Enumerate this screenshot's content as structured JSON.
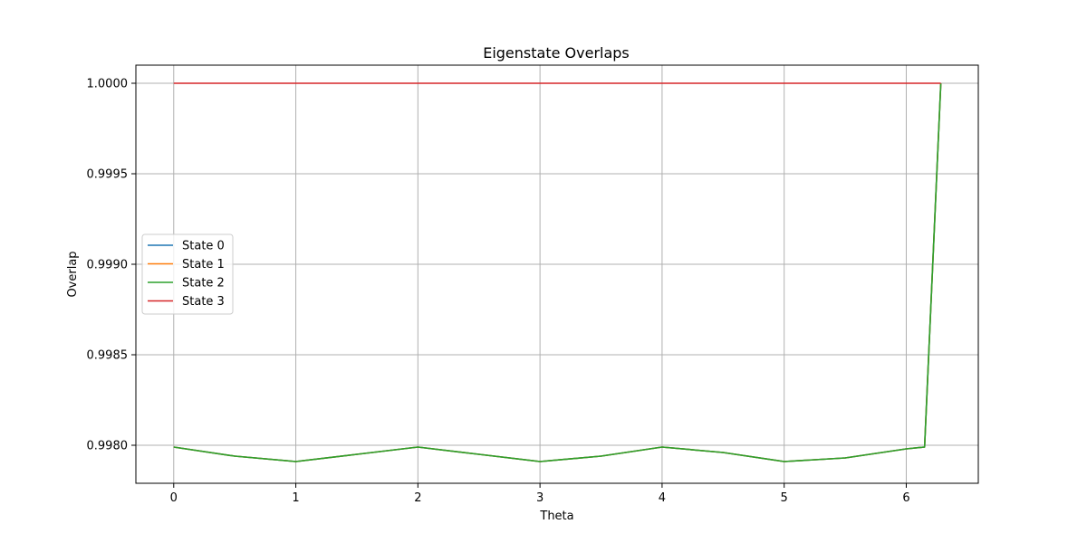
{
  "chart_data": {
    "type": "line",
    "title": "Eigenstate Overlaps",
    "xlabel": "Theta",
    "ylabel": "Overlap",
    "xlim": [
      -0.31,
      6.59
    ],
    "ylim": [
      0.99779,
      1.0001
    ],
    "xticks": [
      0,
      1,
      2,
      3,
      4,
      5,
      6
    ],
    "xtick_labels": [
      "0",
      "1",
      "2",
      "3",
      "4",
      "5",
      "6"
    ],
    "yticks": [
      0.998,
      0.9985,
      0.999,
      0.9995,
      1.0
    ],
    "ytick_labels": [
      "0.9980",
      "0.9985",
      "0.9990",
      "0.9995",
      "1.0000"
    ],
    "grid": true,
    "legend_position": "center-left",
    "series": [
      {
        "name": "State 0",
        "color": "#1f77b4",
        "x": [
          0,
          0.5,
          1.0,
          1.5,
          2.0,
          2.5,
          3.0,
          3.5,
          4.0,
          4.5,
          5.0,
          5.5,
          6.0,
          6.15,
          6.283
        ],
        "y": [
          0.99799,
          0.99794,
          0.99791,
          0.99795,
          0.99799,
          0.99795,
          0.99791,
          0.99794,
          0.99799,
          0.99796,
          0.99791,
          0.99793,
          0.99798,
          0.99799,
          1.0
        ]
      },
      {
        "name": "State 1",
        "color": "#ff7f0e",
        "x": [
          0,
          0.5,
          1.0,
          1.5,
          2.0,
          2.5,
          3.0,
          3.5,
          4.0,
          4.5,
          5.0,
          5.5,
          6.0,
          6.15,
          6.283
        ],
        "y": [
          0.99799,
          0.99794,
          0.99791,
          0.99795,
          0.99799,
          0.99795,
          0.99791,
          0.99794,
          0.99799,
          0.99796,
          0.99791,
          0.99793,
          0.99798,
          0.99799,
          1.0
        ]
      },
      {
        "name": "State 2",
        "color": "#2ca02c",
        "x": [
          0,
          0.5,
          1.0,
          1.5,
          2.0,
          2.5,
          3.0,
          3.5,
          4.0,
          4.5,
          5.0,
          5.5,
          6.0,
          6.15,
          6.283
        ],
        "y": [
          0.99799,
          0.99794,
          0.99791,
          0.99795,
          0.99799,
          0.99795,
          0.99791,
          0.99794,
          0.99799,
          0.99796,
          0.99791,
          0.99793,
          0.99798,
          0.99799,
          1.0
        ]
      },
      {
        "name": "State 3",
        "color": "#d62728",
        "x": [
          0,
          6.283
        ],
        "y": [
          1.0,
          1.0
        ]
      }
    ]
  }
}
